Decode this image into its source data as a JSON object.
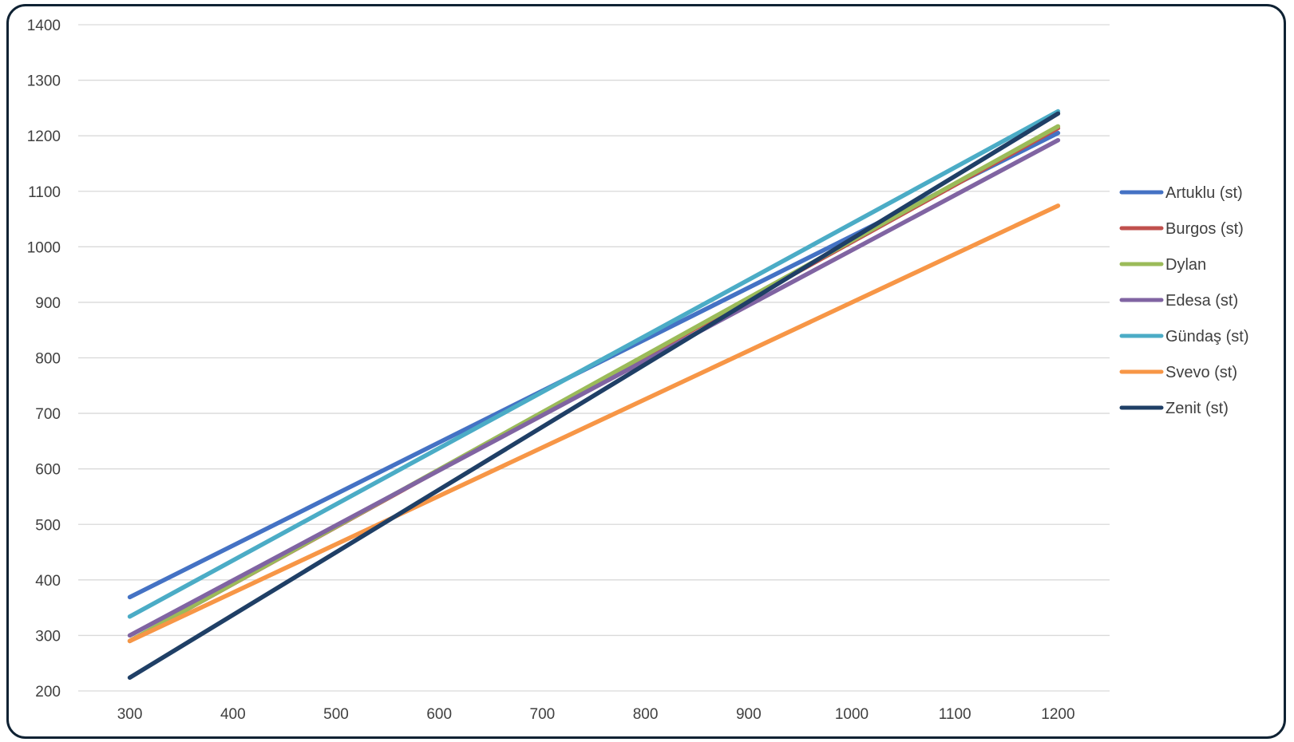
{
  "chart_data": {
    "type": "line",
    "title": "",
    "xlabel": "",
    "ylabel": "",
    "x": [
      300,
      1200
    ],
    "xticks": [
      300,
      400,
      500,
      600,
      700,
      800,
      900,
      1000,
      1100,
      1200
    ],
    "yticks": [
      200,
      300,
      400,
      500,
      600,
      700,
      800,
      900,
      1000,
      1100,
      1200,
      1300,
      1400
    ],
    "xlim": [
      250,
      1250
    ],
    "ylim": [
      200,
      1400
    ],
    "grid": "horizontal",
    "legend_position": "right",
    "series": [
      {
        "name": "Artuklu (st)",
        "color": "#4472c4",
        "values": [
          369,
          1205
        ]
      },
      {
        "name": "Burgos (st)",
        "color": "#c0504d",
        "values": [
          290,
          1214
        ]
      },
      {
        "name": "Dylan",
        "color": "#9bbb59",
        "values": [
          290,
          1217
        ]
      },
      {
        "name": "Edesa (st)",
        "color": "#8064a2",
        "values": [
          300,
          1192
        ]
      },
      {
        "name": "Gündaş (st)",
        "color": "#4bacc6",
        "values": [
          334,
          1244
        ]
      },
      {
        "name": "Svevo (st)",
        "color": "#f79646",
        "values": [
          290,
          1074
        ]
      },
      {
        "name": "Zenit (st)",
        "color": "#1f3f66",
        "values": [
          224,
          1240
        ]
      }
    ]
  }
}
